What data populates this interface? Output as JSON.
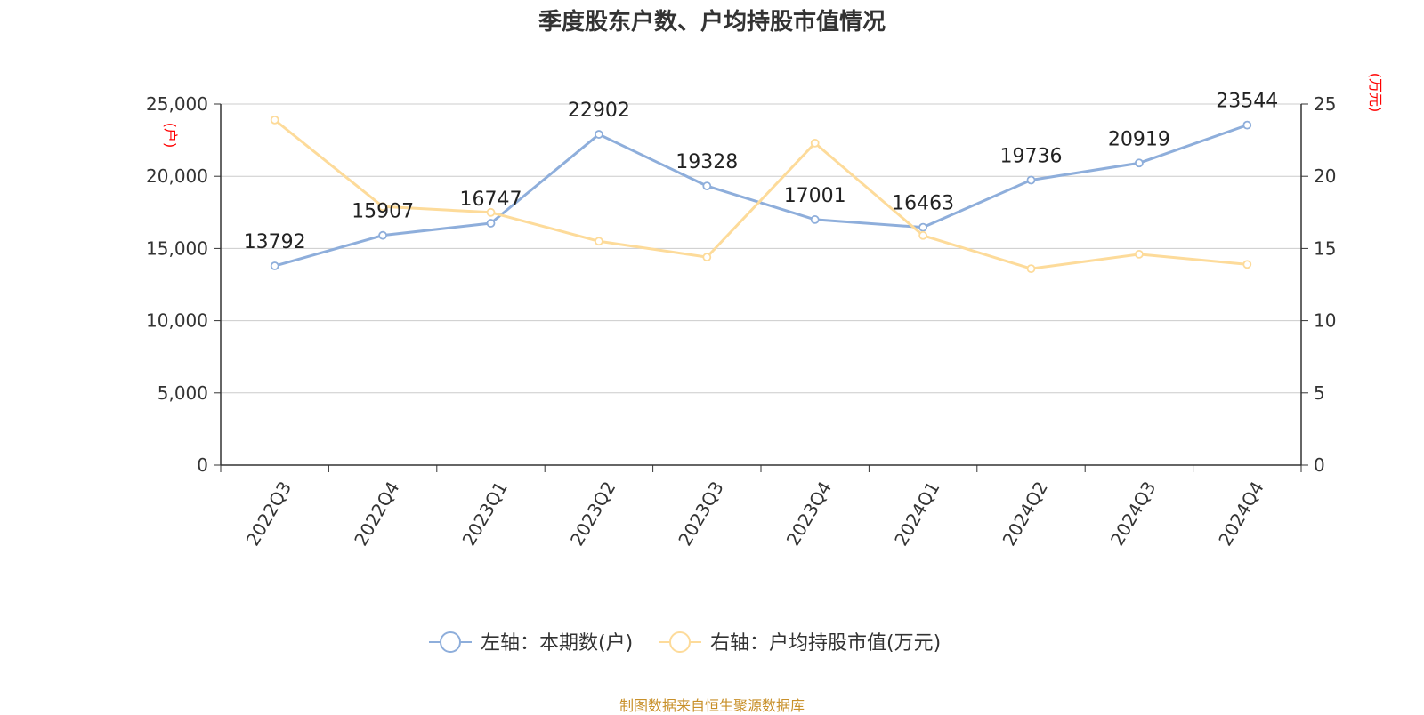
{
  "title": "季度股东户数、户均持股市值情况",
  "source": "制图数据来自恒生聚源数据库",
  "colors": {
    "series_left": "#8eaedb",
    "series_right": "#fddb9a",
    "unit": "#ff0000",
    "source": "#c8902a",
    "axis": "#333333",
    "grid": "#cccccc"
  },
  "chart_data": {
    "type": "line",
    "categories": [
      "2022Q3",
      "2022Q4",
      "2023Q1",
      "2023Q2",
      "2023Q3",
      "2023Q4",
      "2024Q1",
      "2024Q2",
      "2024Q3",
      "2024Q4"
    ],
    "y_left": {
      "unit": "(户)",
      "range": [
        0,
        25000
      ],
      "ticks": [
        "0",
        "5,000",
        "10,000",
        "15,000",
        "20,000",
        "25,000"
      ],
      "tick_values": [
        0,
        5000,
        10000,
        15000,
        20000,
        25000
      ]
    },
    "y_right": {
      "unit": "(万元)",
      "range": [
        0,
        25
      ],
      "ticks": [
        "0",
        "5",
        "10",
        "15",
        "20",
        "25"
      ],
      "tick_values": [
        0,
        5,
        10,
        15,
        20,
        25
      ]
    },
    "grid": true,
    "legend_position": "bottom",
    "series": [
      {
        "name": "左轴：本期数(户)",
        "axis": "left",
        "values": [
          13792,
          15907,
          16747,
          22902,
          19328,
          17001,
          16463,
          19736,
          20919,
          23544
        ],
        "labels": [
          "13792",
          "15907",
          "16747",
          "22902",
          "19328",
          "17001",
          "16463",
          "19736",
          "20919",
          "23544"
        ]
      },
      {
        "name": "右轴：户均持股市值(万元)",
        "axis": "right",
        "values": [
          23.9,
          17.9,
          17.5,
          15.5,
          14.4,
          22.3,
          15.9,
          13.6,
          14.6,
          13.9
        ]
      }
    ]
  }
}
